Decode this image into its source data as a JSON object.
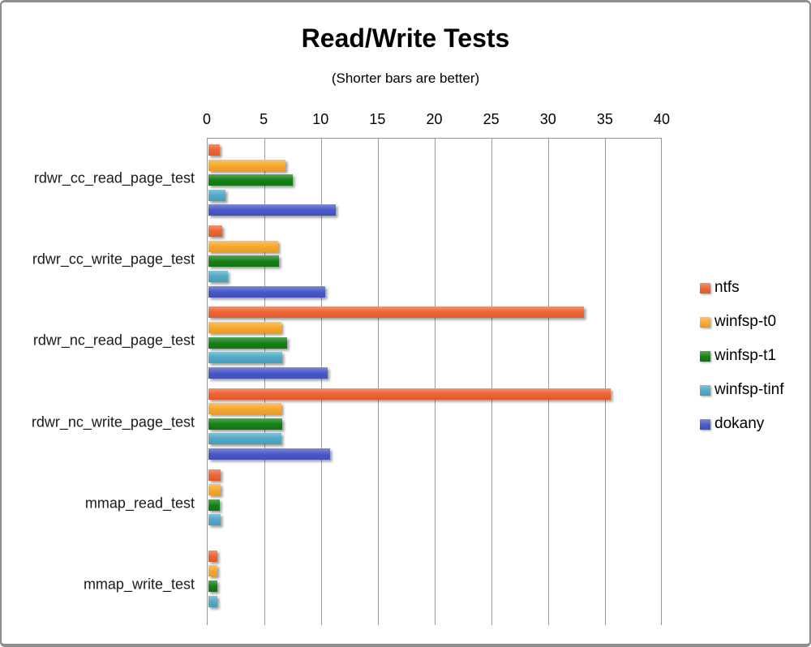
{
  "title": "Read/Write Tests",
  "subtitle": "(Shorter bars are better)",
  "colors": {
    "ntfs": "#ee6231",
    "winfsp_t0": "#f8a82b",
    "winfsp_t1": "#127e12",
    "winfsp_tinf": "#4ea8c6",
    "dokany": "#4656c6",
    "gridline": "#9a9a9a",
    "frame_border": "#8e8e8e"
  },
  "chart_data": {
    "type": "bar",
    "orientation": "horizontal",
    "title": "Read/Write Tests",
    "subtitle": "(Shorter bars are better)",
    "categories": [
      "rdwr_cc_read_page_test",
      "rdwr_cc_write_page_test",
      "rdwr_nc_read_page_test",
      "rdwr_nc_write_page_test",
      "mmap_read_test",
      "mmap_write_test"
    ],
    "series": [
      {
        "name": "ntfs",
        "color": "#ee6231",
        "values": [
          1.0,
          1.2,
          33.0,
          35.4,
          1.1,
          0.8
        ]
      },
      {
        "name": "winfsp-t0",
        "color": "#f8a82b",
        "values": [
          6.8,
          6.1,
          6.4,
          6.4,
          1.1,
          0.8
        ]
      },
      {
        "name": "winfsp-t1",
        "color": "#127e12",
        "values": [
          7.4,
          6.2,
          6.9,
          6.5,
          1.0,
          0.8
        ]
      },
      {
        "name": "winfsp-tinf",
        "color": "#4ea8c6",
        "values": [
          1.5,
          1.7,
          6.5,
          6.4,
          1.1,
          0.8
        ]
      },
      {
        "name": "dokany",
        "color": "#4656c6",
        "values": [
          11.2,
          10.3,
          10.5,
          10.7,
          0,
          0
        ]
      }
    ],
    "x_axis": {
      "min": 0,
      "max": 40,
      "tick_step": 5,
      "tick_labels": [
        "0",
        "5",
        "10",
        "15",
        "20",
        "25",
        "30",
        "35",
        "40"
      ]
    },
    "grid": true,
    "legend_position": "right"
  }
}
